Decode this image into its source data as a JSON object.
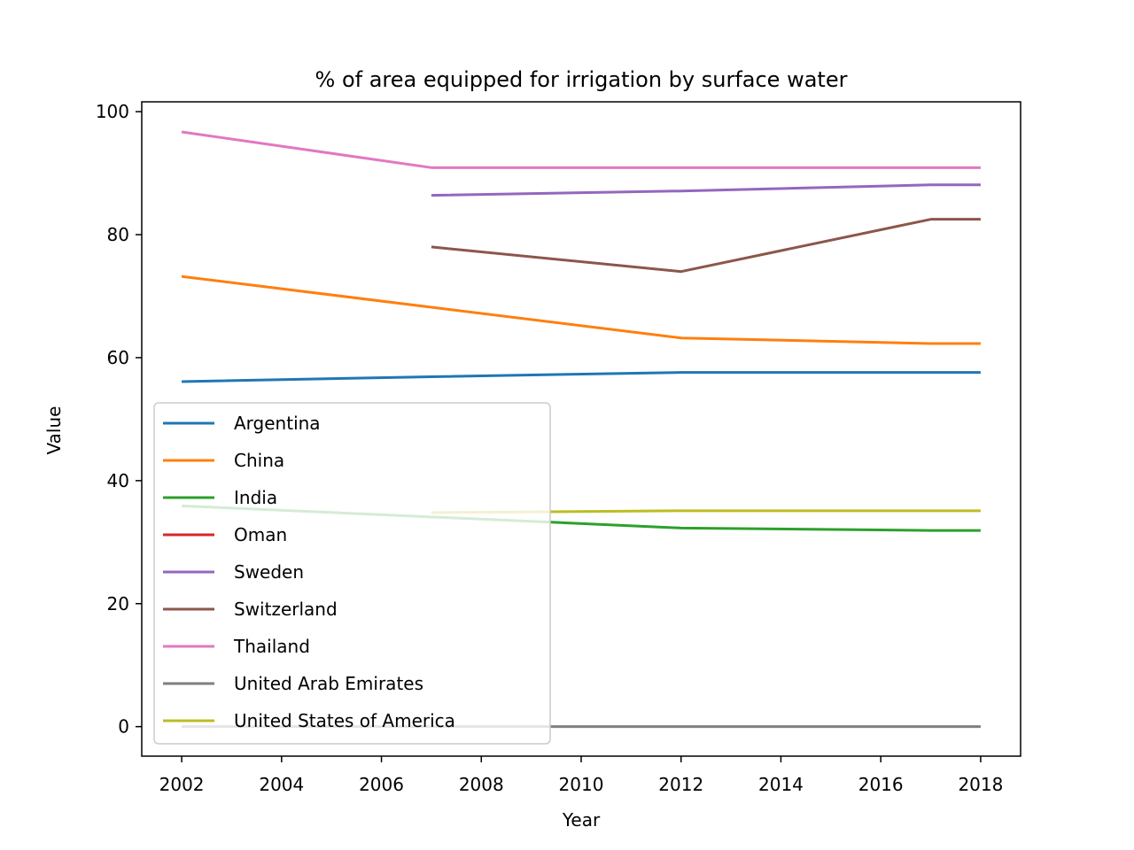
{
  "chart_data": {
    "type": "line",
    "title": "% of area equipped for irrigation by surface water",
    "xlabel": "Year",
    "ylabel": "Value",
    "xlim": [
      2001.2,
      2018.8
    ],
    "ylim": [
      -4.8,
      101.6
    ],
    "xticks": [
      2002,
      2004,
      2006,
      2008,
      2010,
      2012,
      2014,
      2016,
      2018
    ],
    "yticks": [
      0,
      20,
      40,
      60,
      80,
      100
    ],
    "grid": false,
    "legend_position": "lower-left",
    "series": [
      {
        "name": "Argentina",
        "color": "#1f77b4",
        "x": [
          2002,
          2007,
          2012,
          2017,
          2018
        ],
        "y": [
          56.1,
          56.9,
          57.6,
          57.6,
          57.6
        ]
      },
      {
        "name": "China",
        "color": "#ff7f0e",
        "x": [
          2002,
          2007,
          2012,
          2017,
          2018
        ],
        "y": [
          73.2,
          68.2,
          63.2,
          62.3,
          62.3
        ]
      },
      {
        "name": "India",
        "color": "#2ca02c",
        "x": [
          2002,
          2007,
          2012,
          2017,
          2018
        ],
        "y": [
          35.9,
          34.1,
          32.3,
          31.9,
          31.9
        ]
      },
      {
        "name": "Oman",
        "color": "#d62728",
        "x": [],
        "y": []
      },
      {
        "name": "Sweden",
        "color": "#9467bd",
        "x": [
          2007,
          2012,
          2017,
          2018
        ],
        "y": [
          86.4,
          87.1,
          88.1,
          88.1
        ]
      },
      {
        "name": "Switzerland",
        "color": "#8c564b",
        "x": [
          2007,
          2012,
          2017,
          2018
        ],
        "y": [
          78.0,
          74.0,
          82.5,
          82.5
        ]
      },
      {
        "name": "Thailand",
        "color": "#e377c2",
        "x": [
          2002,
          2007,
          2012,
          2017,
          2018
        ],
        "y": [
          96.7,
          90.9,
          90.9,
          90.9,
          90.9
        ]
      },
      {
        "name": "United Arab Emirates",
        "color": "#7f7f7f",
        "x": [
          2002,
          2007,
          2012,
          2017,
          2018
        ],
        "y": [
          0,
          0,
          0,
          0,
          0
        ]
      },
      {
        "name": "United States of America",
        "color": "#bcbd22",
        "x": [
          2007,
          2012,
          2017,
          2018
        ],
        "y": [
          34.8,
          35.1,
          35.1,
          35.1
        ]
      }
    ]
  }
}
